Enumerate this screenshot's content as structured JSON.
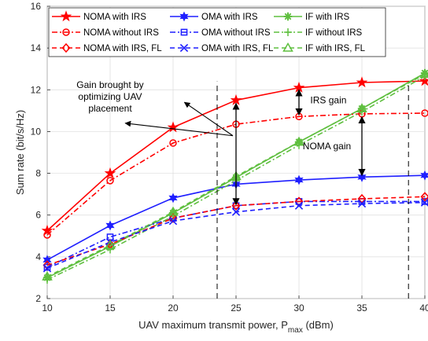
{
  "chart_data": {
    "type": "line",
    "xlabel": "UAV maximum transmit power, P",
    "xlabel_sub": "max",
    "xlabel_unit": " (dBm)",
    "ylabel": "Sum rate (bit/s/Hz)",
    "xlim": [
      10,
      40
    ],
    "ylim": [
      2,
      16
    ],
    "x": [
      10,
      15,
      20,
      25,
      30,
      35,
      40
    ],
    "xticks": [
      "10",
      "15",
      "20",
      "25",
      "30",
      "35",
      "40"
    ],
    "yticks": [
      "2",
      "4",
      "6",
      "8",
      "10",
      "12",
      "14",
      "16"
    ],
    "grid": true,
    "legend_position": "top",
    "series": [
      {
        "name": "NOMA with IRS",
        "color": "#ff0000",
        "dash": "solid",
        "marker": "star",
        "values": [
          5.25,
          8.0,
          10.2,
          11.5,
          12.1,
          12.35,
          12.42
        ]
      },
      {
        "name": "OMA with IRS",
        "color": "#1f1fff",
        "dash": "solid",
        "marker": "hexstar",
        "values": [
          3.85,
          5.5,
          6.82,
          7.48,
          7.68,
          7.82,
          7.9
        ]
      },
      {
        "name": "IF with IRS",
        "color": "#5fbf3f",
        "dash": "solid",
        "marker": "asterisk",
        "values": [
          3.0,
          4.5,
          6.1,
          7.8,
          9.5,
          11.1,
          12.8
        ]
      },
      {
        "name": "NOMA without IRS",
        "color": "#ff0000",
        "dash": "dashdot",
        "marker": "circle",
        "values": [
          5.05,
          7.65,
          9.45,
          10.35,
          10.72,
          10.85,
          10.88
        ]
      },
      {
        "name": "OMA without IRS",
        "color": "#1f1fff",
        "dash": "dashdot",
        "marker": "square",
        "values": [
          3.5,
          4.95,
          5.85,
          6.45,
          6.65,
          6.65,
          6.65
        ]
      },
      {
        "name": "IF without IRS",
        "color": "#5fbf3f",
        "dash": "dashdot",
        "marker": "plus",
        "values": [
          2.9,
          4.35,
          5.95,
          7.65,
          9.35,
          10.95,
          12.65
        ]
      },
      {
        "name": "NOMA with IRS, FL",
        "color": "#ff0000",
        "dash": "dashed",
        "marker": "diamond",
        "values": [
          3.6,
          4.6,
          5.85,
          6.45,
          6.65,
          6.78,
          6.88
        ]
      },
      {
        "name": "OMA with IRS, FL",
        "color": "#1f1fff",
        "dash": "dashed",
        "marker": "x",
        "values": [
          3.45,
          4.7,
          5.72,
          6.15,
          6.45,
          6.55,
          6.6
        ]
      },
      {
        "name": "IF with IRS, FL",
        "color": "#5fbf3f",
        "dash": "dashed",
        "marker": "triangle",
        "values": [
          3.05,
          4.55,
          6.15,
          7.85,
          9.5,
          11.1,
          12.75
        ]
      }
    ],
    "annotations": [
      {
        "text": [
          "Gain brought by",
          "optimizing UAV",
          "placement"
        ]
      },
      {
        "text": [
          "IRS gain"
        ]
      },
      {
        "text": [
          "NOMA gain"
        ]
      }
    ]
  }
}
